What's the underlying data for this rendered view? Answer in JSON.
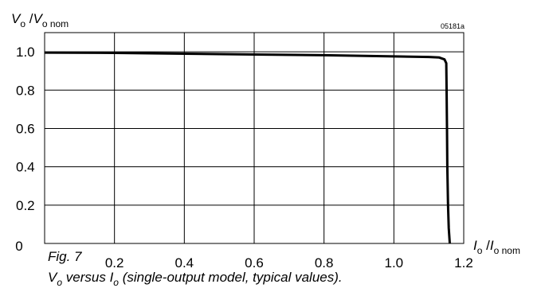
{
  "figure": {
    "code": "05181a",
    "label": "Fig. 7",
    "caption": {
      "v": "V",
      "v_sub": "o",
      "mid": " versus ",
      "i": "I",
      "i_sub": "o",
      "rest": " (single-output model, typical values)."
    }
  },
  "chart_data": {
    "type": "line",
    "ylabel": {
      "main": "V",
      "sub": "o",
      "sep": " /",
      "main2": "V",
      "sub2": "o nom"
    },
    "xlabel": {
      "main": "I",
      "sub": "o",
      "sep": " /",
      "main2": "I",
      "sub2": "o nom"
    },
    "xlim": [
      0,
      1.2
    ],
    "ylim": [
      0,
      1.1
    ],
    "x_ticks": [
      {
        "v": 0.2,
        "label": "0.2"
      },
      {
        "v": 0.4,
        "label": "0.4"
      },
      {
        "v": 0.6,
        "label": "0.6"
      },
      {
        "v": 0.8,
        "label": "0.8"
      },
      {
        "v": 1.0,
        "label": "1.0"
      },
      {
        "v": 1.2,
        "label": "1.2"
      }
    ],
    "y_ticks": [
      {
        "v": 0,
        "label": "0"
      },
      {
        "v": 0.2,
        "label": "0.2"
      },
      {
        "v": 0.4,
        "label": "0.4"
      },
      {
        "v": 0.6,
        "label": "0.6"
      },
      {
        "v": 0.8,
        "label": "0.8"
      },
      {
        "v": 1.0,
        "label": "1.0"
      }
    ],
    "grid": true,
    "series": [
      {
        "x": [
          0,
          0.2,
          0.4,
          0.6,
          0.8,
          1.0,
          1.1,
          1.13,
          1.145,
          1.15,
          1.151,
          1.152,
          1.153,
          1.155,
          1.157,
          1.16
        ],
        "y": [
          0.996,
          0.994,
          0.99,
          0.986,
          0.982,
          0.976,
          0.973,
          0.97,
          0.96,
          0.94,
          0.8,
          0.6,
          0.4,
          0.2,
          0.08,
          0
        ]
      }
    ]
  }
}
